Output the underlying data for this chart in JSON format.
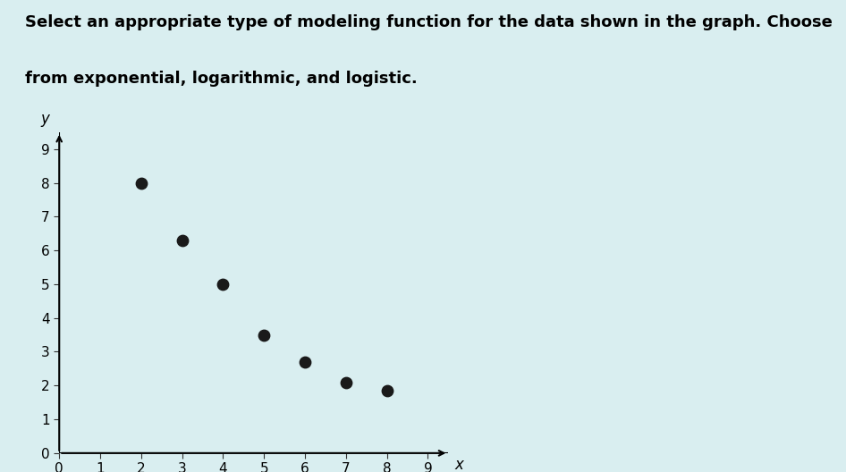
{
  "title_line1": "Select an appropriate type of modeling function for the data shown in the graph. Choose",
  "title_line2": "from exponential, logarithmic, and logistic.",
  "points_x": [
    2,
    3,
    4,
    5,
    6,
    7,
    8
  ],
  "points_y": [
    8,
    6.3,
    5.0,
    3.5,
    2.7,
    2.1,
    1.85
  ],
  "xlim": [
    0,
    9.5
  ],
  "ylim": [
    0,
    9.5
  ],
  "xticks": [
    0,
    1,
    2,
    3,
    4,
    5,
    6,
    7,
    8,
    9
  ],
  "yticks": [
    0,
    1,
    2,
    3,
    4,
    5,
    6,
    7,
    8,
    9
  ],
  "xlabel": "x",
  "ylabel": "y",
  "dot_color": "#1a1a1a",
  "dot_size": 80,
  "background_color": "#d9eef0",
  "title_fontsize": 13,
  "title_fontweight": "bold"
}
